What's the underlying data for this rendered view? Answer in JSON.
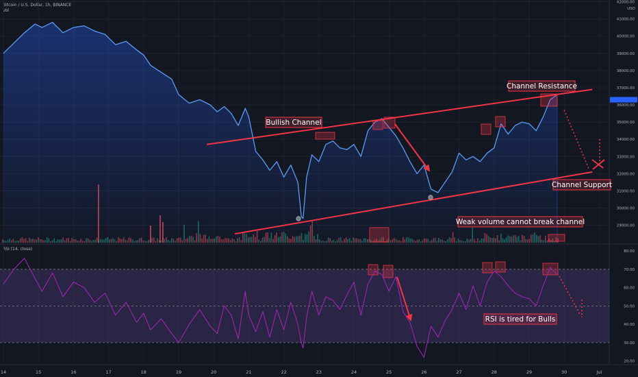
{
  "header": {
    "title": "Bitcoin / U.S. Dollar, 1h, BINANCE",
    "volume_label": "Vol",
    "rsi_label": "RSI (14, close)",
    "currency": "USD"
  },
  "chart_data": [
    {
      "type": "line",
      "title": "Bitcoin / U.S. Dollar, 1h, BINANCE",
      "x_ticks": [
        "14",
        "15",
        "16",
        "17",
        "18",
        "19",
        "20",
        "21",
        "22",
        "23",
        "24",
        "25",
        "26",
        "27",
        "28",
        "29",
        "30",
        "Jul"
      ],
      "x_range": [
        14.0,
        31.0
      ],
      "y_ticks": [
        29000,
        30000,
        31000,
        32000,
        33000,
        34000,
        35000,
        36000,
        37000,
        38000,
        39000,
        40000,
        41000,
        42000
      ],
      "y_tick_labels": [
        "29000.00",
        "30000.00",
        "31000.00",
        "32000.00",
        "33000.00",
        "34000.00",
        "35000.00",
        "36000.00",
        "37000.00",
        "38000.00",
        "39000.00",
        "40000.00",
        "41000.00",
        "42000.00"
      ],
      "ylim": [
        27950,
        42100
      ],
      "current_price": 36300,
      "series": [
        {
          "x": [
            14.0,
            14.3,
            14.6,
            14.9,
            15.1,
            15.4,
            15.7,
            16.0,
            16.3,
            16.6,
            16.9,
            17.2,
            17.5,
            17.8,
            18.0,
            18.2,
            18.5,
            18.8,
            19.0,
            19.3,
            19.6,
            19.9,
            20.1,
            20.3,
            20.5,
            20.7,
            20.9,
            21.0,
            21.2,
            21.4,
            21.6,
            21.8,
            22.0,
            22.2,
            22.4,
            22.5,
            22.55,
            22.65,
            22.8,
            23.0,
            23.2,
            23.4,
            23.6,
            23.8,
            24.0,
            24.2,
            24.4,
            24.6,
            24.8,
            25.0,
            25.2,
            25.4,
            25.6,
            25.8,
            26.0,
            26.2,
            26.4,
            26.6,
            26.8,
            27.0,
            27.2,
            27.4,
            27.6,
            27.8,
            28.0,
            28.2,
            28.4,
            28.6,
            28.8,
            29.0,
            29.2,
            29.4,
            29.6,
            29.8
          ],
          "y": [
            39000,
            39600,
            40200,
            40700,
            40500,
            40800,
            40200,
            40500,
            40600,
            40300,
            40100,
            39500,
            39700,
            39200,
            38900,
            38300,
            37900,
            37500,
            36600,
            36100,
            36300,
            36000,
            35600,
            35900,
            35500,
            34800,
            35800,
            35300,
            33300,
            32800,
            32200,
            32700,
            31800,
            32500,
            31500,
            29500,
            29400,
            31800,
            33100,
            32700,
            33700,
            33900,
            33500,
            33400,
            33700,
            33000,
            34500,
            35000,
            35200,
            34700,
            34200,
            33500,
            32700,
            32000,
            32500,
            31100,
            30900,
            31500,
            32100,
            33200,
            32800,
            33000,
            32700,
            33200,
            33500,
            34900,
            34300,
            34800,
            35000,
            34900,
            34500,
            35300,
            36300,
            36600
          ]
        }
      ],
      "volume": {
        "ylim": [
          0,
          10
        ]
      },
      "annotations": [
        {
          "text": "Channel Resistance"
        },
        {
          "text": "Bullish Channel"
        },
        {
          "text": "Channel Support"
        },
        {
          "text": "Weak volume cannot break channel"
        }
      ],
      "trendlines": [
        {
          "name": "Channel Resistance",
          "from": [
            19.8,
            33700
          ],
          "to": [
            30.8,
            36900
          ]
        },
        {
          "name": "Channel Support",
          "from": [
            20.6,
            28500
          ],
          "to": [
            30.8,
            32100
          ]
        }
      ],
      "projection": {
        "from": [
          30.0,
          35700
        ],
        "to": [
          30.9,
          32600
        ]
      }
    },
    {
      "type": "line",
      "title": "RSI (14, close)",
      "y_ticks": [
        20,
        30,
        40,
        50,
        60,
        70,
        80
      ],
      "y_tick_labels": [
        "20.00",
        "30.00",
        "40.00",
        "50.00",
        "60.00",
        "70.00",
        "80.00"
      ],
      "ylim": [
        18,
        83
      ],
      "bands": [
        30,
        50,
        70
      ],
      "series": [
        {
          "x": [
            14.0,
            14.3,
            14.6,
            14.9,
            15.1,
            15.4,
            15.7,
            16.0,
            16.3,
            16.6,
            16.9,
            17.2,
            17.5,
            17.8,
            18.0,
            18.2,
            18.5,
            18.8,
            19.0,
            19.3,
            19.6,
            19.9,
            20.1,
            20.3,
            20.5,
            20.7,
            20.9,
            21.0,
            21.2,
            21.4,
            21.6,
            21.8,
            22.0,
            22.2,
            22.4,
            22.5,
            22.55,
            22.65,
            22.8,
            23.0,
            23.2,
            23.4,
            23.6,
            23.8,
            24.0,
            24.2,
            24.4,
            24.6,
            24.8,
            25.0,
            25.2,
            25.4,
            25.6,
            25.8,
            26.0,
            26.2,
            26.4,
            26.6,
            26.8,
            27.0,
            27.2,
            27.4,
            27.6,
            27.8,
            28.0,
            28.2,
            28.4,
            28.6,
            28.8,
            29.0,
            29.2,
            29.4,
            29.6,
            29.8
          ],
          "y": [
            62,
            70,
            76,
            65,
            58,
            68,
            55,
            63,
            60,
            52,
            57,
            45,
            52,
            41,
            46,
            37,
            43,
            35,
            30,
            40,
            48,
            39,
            35,
            50,
            45,
            32,
            58,
            45,
            36,
            47,
            33,
            48,
            37,
            52,
            40,
            30,
            27,
            44,
            58,
            45,
            55,
            53,
            48,
            56,
            63,
            45,
            62,
            69,
            67,
            58,
            66,
            47,
            41,
            28,
            22,
            39,
            33,
            42,
            48,
            57,
            48,
            61,
            50,
            63,
            69,
            66,
            61,
            57,
            55,
            54,
            50,
            61,
            71,
            67
          ]
        }
      ],
      "annotations": [
        {
          "text": "RSI is tired for Bulls"
        }
      ]
    }
  ]
}
